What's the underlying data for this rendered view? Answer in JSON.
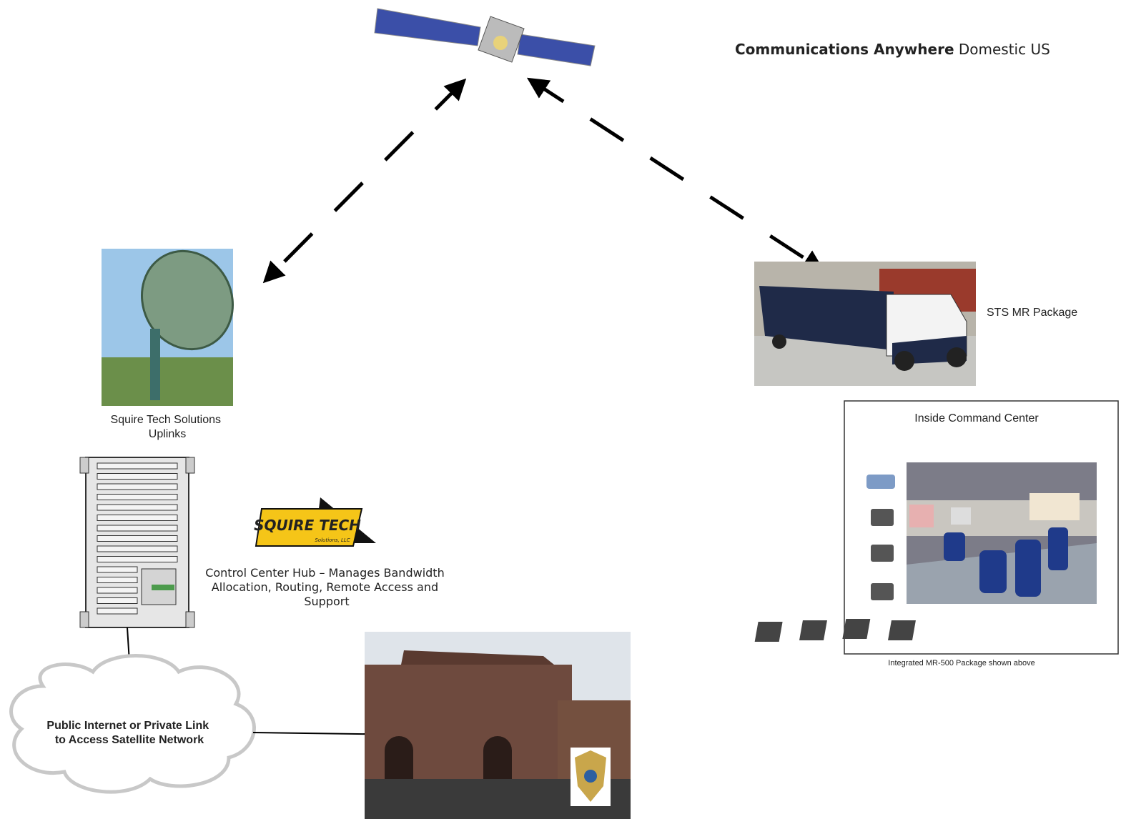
{
  "header": {
    "title_bold": "Communications Anywhere",
    "title_rest": "Domestic US"
  },
  "uplink": {
    "label_lines": [
      "Squire Tech Solutions",
      "Uplinks"
    ]
  },
  "truck": {
    "label": "STS MR Package"
  },
  "command_center": {
    "title": "Inside Command Center",
    "caption": "Integrated MR-500 Package shown above"
  },
  "logo": {
    "name": "SQUIRE TECH",
    "subtitle": "Solutions, LLC"
  },
  "hub": {
    "label_lines": [
      "Control Center Hub – Manages Bandwidth",
      "Allocation, Routing, Remote Access and",
      "Support"
    ]
  },
  "cloud": {
    "label_lines": [
      "Public Internet or Private Link",
      "to Access Satellite Network"
    ]
  }
}
